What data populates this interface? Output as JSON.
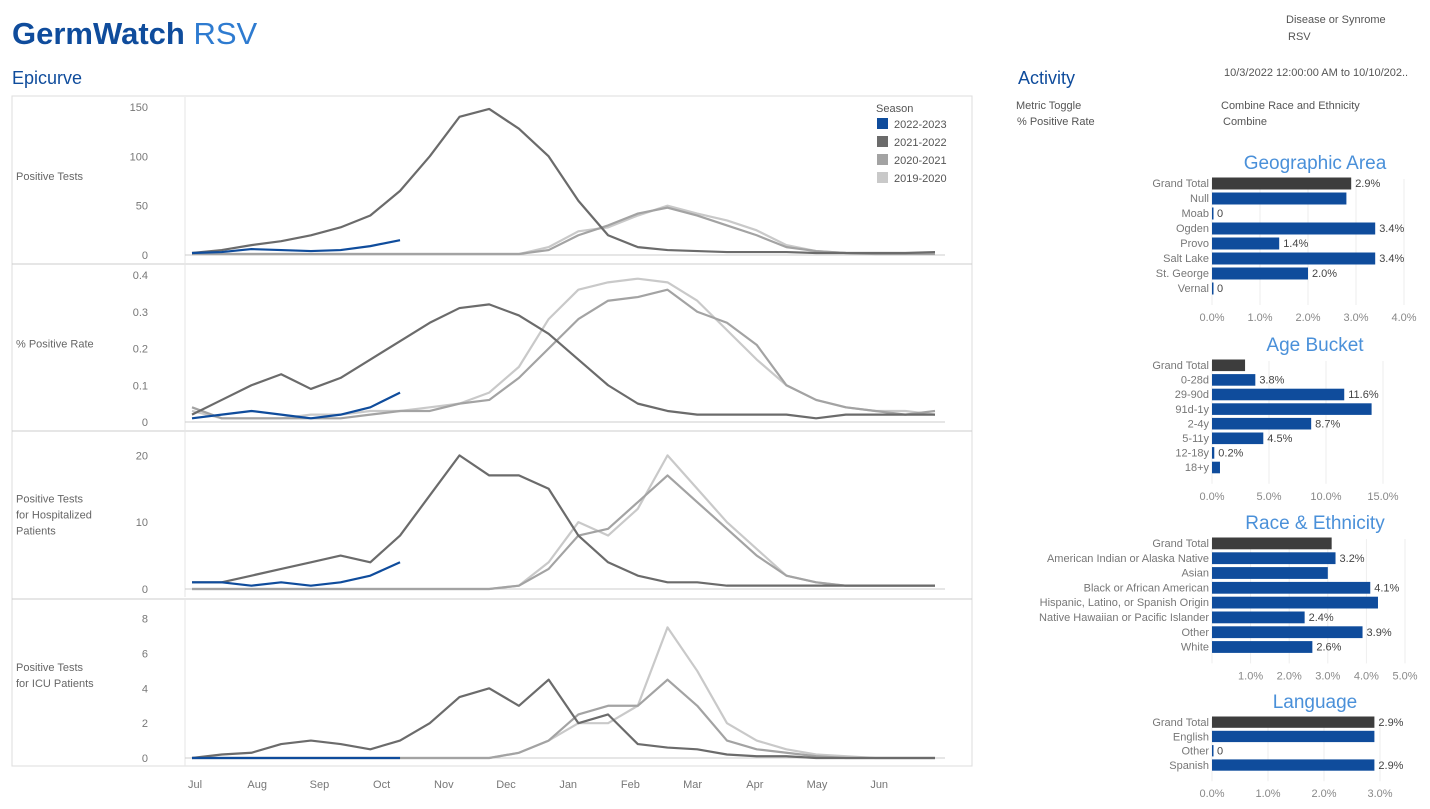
{
  "header": {
    "title_bold": "GermWatch",
    "title_light": "RSV",
    "disease_label": "Disease or Synrome",
    "disease_value": "RSV",
    "date_range": "10/3/2022 12:00:00 AM to 10/10/202.."
  },
  "epicurve": {
    "title": "Epicurve"
  },
  "activity": {
    "title": "Activity",
    "metric_label": "Metric Toggle",
    "metric_value": "% Positive Rate",
    "combine_label": "Combine Race and Ethnicity",
    "combine_value": "Combine"
  },
  "colors": {
    "2022-2023": "#0f4c9c",
    "2021-2022": "#6b6b6b",
    "2020-2021": "#a3a3a3",
    "2019-2020": "#c9c9c9",
    "grand_total": "#3d3d3d",
    "bar": "#0f4c9c"
  },
  "chart_data": [
    {
      "type": "line",
      "title": "Epicurve",
      "legend_title": "Season",
      "legend_placement": "top-right",
      "seasons": [
        "2022-2023",
        "2021-2022",
        "2020-2021",
        "2019-2020"
      ],
      "x_unit": "week of season (biweekly points)",
      "x_ticks": [
        "Jul",
        "Aug",
        "Sep",
        "Oct",
        "Nov",
        "Dec",
        "Jan",
        "Feb",
        "Mar",
        "Apr",
        "May",
        "Jun"
      ],
      "panels": [
        {
          "ylabel": "Positive Tests",
          "ylim": [
            0,
            150
          ],
          "yticks": [
            0,
            50,
            100,
            150
          ],
          "series": {
            "2019-2020": [
              1,
              1,
              1,
              1,
              1,
              1,
              1,
              1,
              1,
              1,
              1,
              1,
              8,
              24,
              28,
              40,
              50,
              42,
              35,
              25,
              10,
              4,
              2,
              1,
              1,
              1
            ],
            "2020-2021": [
              1,
              1,
              1,
              1,
              1,
              1,
              1,
              1,
              1,
              1,
              1,
              1,
              5,
              20,
              30,
              42,
              48,
              40,
              30,
              20,
              8,
              4,
              2,
              1,
              1,
              1
            ],
            "2021-2022": [
              2,
              5,
              10,
              14,
              20,
              28,
              40,
              65,
              100,
              140,
              148,
              128,
              100,
              55,
              20,
              8,
              5,
              4,
              3,
              3,
              3,
              2,
              2,
              2,
              2,
              3
            ],
            "2022-2023": [
              2,
              3,
              6,
              5,
              4,
              5,
              9,
              15
            ]
          }
        },
        {
          "ylabel": "% Positive Rate",
          "ylim": [
            0,
            0.4
          ],
          "yticks": [
            0.0,
            0.1,
            0.2,
            0.3,
            0.4
          ],
          "series": {
            "2019-2020": [
              0.03,
              0.01,
              0.01,
              0.01,
              0.02,
              0.02,
              0.03,
              0.03,
              0.04,
              0.05,
              0.08,
              0.15,
              0.28,
              0.36,
              0.38,
              0.39,
              0.38,
              0.33,
              0.25,
              0.17,
              0.1,
              0.06,
              0.04,
              0.03,
              0.03,
              0.02
            ],
            "2020-2021": [
              0.04,
              0.01,
              0.01,
              0.01,
              0.01,
              0.01,
              0.02,
              0.03,
              0.03,
              0.05,
              0.06,
              0.12,
              0.2,
              0.28,
              0.33,
              0.34,
              0.36,
              0.3,
              0.27,
              0.21,
              0.1,
              0.06,
              0.04,
              0.03,
              0.02,
              0.03
            ],
            "2021-2022": [
              0.02,
              0.06,
              0.1,
              0.13,
              0.09,
              0.12,
              0.17,
              0.22,
              0.27,
              0.31,
              0.32,
              0.29,
              0.24,
              0.17,
              0.1,
              0.05,
              0.03,
              0.02,
              0.02,
              0.02,
              0.02,
              0.01,
              0.02,
              0.02,
              0.02,
              0.02
            ],
            "2022-2023": [
              0.01,
              0.02,
              0.03,
              0.02,
              0.01,
              0.02,
              0.04,
              0.08
            ]
          }
        },
        {
          "ylabel": "Positive Tests for Hospitalized Patients",
          "ylim": [
            0,
            22
          ],
          "yticks": [
            0,
            10,
            20
          ],
          "series": {
            "2019-2020": [
              0,
              0,
              0,
              0,
              0,
              0,
              0,
              0,
              0,
              0,
              0,
              0.5,
              4,
              10,
              8,
              12,
              20,
              15,
              10,
              6,
              2,
              1,
              0.5,
              0.5,
              0.5,
              0.5
            ],
            "2020-2021": [
              0,
              0,
              0,
              0,
              0,
              0,
              0,
              0,
              0,
              0,
              0,
              0.5,
              3,
              8,
              9,
              13,
              17,
              13,
              9,
              5,
              2,
              1,
              0.5,
              0.5,
              0.5,
              0.5
            ],
            "2021-2022": [
              1,
              1,
              2,
              3,
              4,
              5,
              4,
              8,
              14,
              20,
              17,
              17,
              15,
              8,
              4,
              2,
              1,
              1,
              0.5,
              0.5,
              0.5,
              0.5,
              0.5,
              0.5,
              0.5,
              0.5
            ],
            "2022-2023": [
              1,
              1,
              0.5,
              1,
              0.5,
              1,
              2,
              4
            ]
          }
        },
        {
          "ylabel": "Positive Tests for ICU Patients",
          "ylim": [
            0,
            8.5
          ],
          "yticks": [
            0,
            2,
            4,
            6,
            8
          ],
          "series": {
            "2019-2020": [
              0,
              0,
              0,
              0,
              0,
              0,
              0,
              0,
              0,
              0,
              0,
              0.3,
              1,
              2,
              2,
              3,
              7.5,
              5,
              2,
              1,
              0.5,
              0.2,
              0.1,
              0,
              0,
              0
            ],
            "2020-2021": [
              0,
              0,
              0,
              0,
              0,
              0,
              0,
              0,
              0,
              0,
              0,
              0.3,
              1,
              2.5,
              3,
              3,
              4.5,
              3,
              1,
              0.5,
              0.3,
              0.1,
              0,
              0,
              0,
              0
            ],
            "2021-2022": [
              0,
              0.2,
              0.3,
              0.8,
              1,
              0.8,
              0.5,
              1,
              2,
              3.5,
              4,
              3,
              4.5,
              2,
              2.5,
              0.8,
              0.6,
              0.5,
              0.2,
              0.1,
              0.1,
              0,
              0,
              0,
              0,
              0
            ],
            "2022-2023": [
              0,
              0,
              0,
              0,
              0,
              0,
              0,
              0
            ]
          }
        }
      ]
    },
    {
      "type": "bar",
      "title": "Geographic Area",
      "xlim": [
        0,
        4
      ],
      "xticks": [
        "0.0%",
        "1.0%",
        "2.0%",
        "3.0%",
        "4.0%"
      ],
      "bars": [
        {
          "name": "Grand Total",
          "value": 2.9,
          "label": "2.9%",
          "total": true
        },
        {
          "name": "Null",
          "value": 2.8,
          "label": null
        },
        {
          "name": "Moab",
          "value": 0,
          "label": "0"
        },
        {
          "name": "Ogden",
          "value": 3.4,
          "label": "3.4%"
        },
        {
          "name": "Provo",
          "value": 1.4,
          "label": "1.4%"
        },
        {
          "name": "Salt Lake",
          "value": 3.4,
          "label": "3.4%"
        },
        {
          "name": "St. George",
          "value": 2.0,
          "label": "2.0%"
        },
        {
          "name": "Vernal",
          "value": 0,
          "label": "0"
        }
      ]
    },
    {
      "type": "bar",
      "title": "Age Bucket",
      "xlim": [
        0,
        15
      ],
      "xticks": [
        "0.0%",
        "5.0%",
        "10.0%",
        "15.0%"
      ],
      "bars": [
        {
          "name": "Grand Total",
          "value": 2.9,
          "label": null,
          "total": true
        },
        {
          "name": "0-28d",
          "value": 3.8,
          "label": "3.8%"
        },
        {
          "name": "29-90d",
          "value": 11.6,
          "label": "11.6%"
        },
        {
          "name": "91d-1y",
          "value": 14.0,
          "label": null
        },
        {
          "name": "2-4y",
          "value": 8.7,
          "label": "8.7%"
        },
        {
          "name": "5-11y",
          "value": 4.5,
          "label": "4.5%"
        },
        {
          "name": "12-18y",
          "value": 0.2,
          "label": "0.2%"
        },
        {
          "name": "18+y",
          "value": 0.7,
          "label": null
        }
      ]
    },
    {
      "type": "bar",
      "title": "Race & Ethnicity",
      "xlim": [
        0,
        5
      ],
      "xticks": [
        "",
        "1.0%",
        "2.0%",
        "3.0%",
        "4.0%",
        "5.0%"
      ],
      "bars": [
        {
          "name": "Grand Total",
          "value": 3.1,
          "label": null,
          "total": true
        },
        {
          "name": "American Indian or Alaska Native",
          "value": 3.2,
          "label": "3.2%"
        },
        {
          "name": "Asian",
          "value": 3.0,
          "label": null
        },
        {
          "name": "Black or African American",
          "value": 4.1,
          "label": "4.1%"
        },
        {
          "name": "Hispanic, Latino, or Spanish Origin",
          "value": 4.3,
          "label": null
        },
        {
          "name": "Native Hawaiian or Pacific Islander",
          "value": 2.4,
          "label": "2.4%"
        },
        {
          "name": "Other",
          "value": 3.9,
          "label": "3.9%"
        },
        {
          "name": "White",
          "value": 2.6,
          "label": "2.6%"
        }
      ]
    },
    {
      "type": "bar",
      "title": "Language",
      "xlim": [
        0,
        3
      ],
      "xticks": [
        "0.0%",
        "1.0%",
        "2.0%",
        "3.0%"
      ],
      "bars": [
        {
          "name": "Grand Total",
          "value": 2.9,
          "label": "2.9%",
          "total": true
        },
        {
          "name": "English",
          "value": 2.9,
          "label": null
        },
        {
          "name": "Other",
          "value": 0,
          "label": "0"
        },
        {
          "name": "Spanish",
          "value": 2.9,
          "label": "2.9%"
        }
      ]
    }
  ]
}
